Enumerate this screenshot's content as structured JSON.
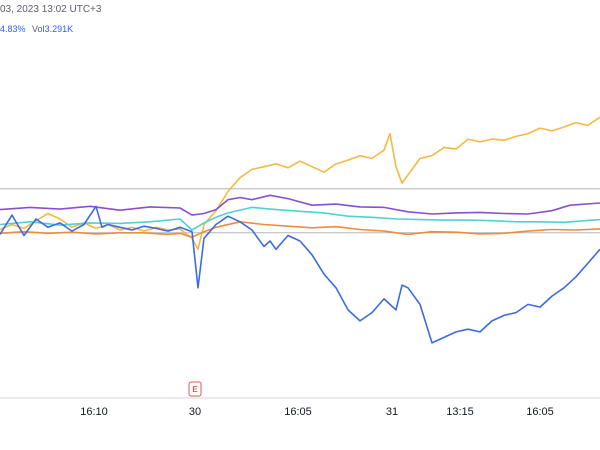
{
  "header": {
    "datetime": "03, 2023 13:02 UTC+3",
    "change_percent": "4.83%",
    "volume_label": "Vol",
    "volume_value": "3.291K"
  },
  "event_marker": {
    "label": "E",
    "color": "#e8534f"
  },
  "colors": {
    "grid": "#e0e3eb",
    "reference_line": "#b2b5be",
    "axis_separator": "#d1d4dc"
  },
  "chart_data": {
    "type": "line",
    "x_ticks": [
      "16:10",
      "30",
      "16:05",
      "31",
      "13:15",
      "16:05"
    ],
    "x_range": [
      0,
      100
    ],
    "y_range": [
      -30,
      35
    ],
    "reference_lines": [
      8,
      0
    ],
    "series": [
      {
        "color": "#f5b841",
        "points": [
          [
            0,
            0.6
          ],
          [
            2,
            1.5
          ],
          [
            4,
            0.8
          ],
          [
            6,
            2.2
          ],
          [
            8,
            3.5
          ],
          [
            10,
            2.5
          ],
          [
            12,
            1.0
          ],
          [
            14,
            1.8
          ],
          [
            16,
            0.8
          ],
          [
            18,
            1.5
          ],
          [
            20,
            0.5
          ],
          [
            22,
            1.0
          ],
          [
            24,
            0.3
          ],
          [
            26,
            1.0
          ],
          [
            28,
            0.5
          ],
          [
            30,
            0.7
          ],
          [
            32,
            -1.0
          ],
          [
            33,
            -3.0
          ],
          [
            34,
            1.5
          ],
          [
            36,
            4.0
          ],
          [
            38,
            7.5
          ],
          [
            40,
            10.0
          ],
          [
            42,
            11.5
          ],
          [
            44,
            12.0
          ],
          [
            46,
            12.5
          ],
          [
            48,
            11.8
          ],
          [
            50,
            13.0
          ],
          [
            52,
            12.0
          ],
          [
            54,
            11.0
          ],
          [
            56,
            12.5
          ],
          [
            58,
            13.2
          ],
          [
            60,
            14.0
          ],
          [
            62,
            13.5
          ],
          [
            64,
            15.0
          ],
          [
            65,
            18.0
          ],
          [
            66,
            12.0
          ],
          [
            67,
            9.0
          ],
          [
            68,
            10.5
          ],
          [
            70,
            13.5
          ],
          [
            72,
            14.0
          ],
          [
            74,
            15.5
          ],
          [
            76,
            15.2
          ],
          [
            78,
            17.0
          ],
          [
            80,
            16.5
          ],
          [
            82,
            17.0
          ],
          [
            84,
            16.8
          ],
          [
            86,
            17.5
          ],
          [
            88,
            18.0
          ],
          [
            90,
            19.0
          ],
          [
            92,
            18.5
          ],
          [
            94,
            19.2
          ],
          [
            96,
            20.0
          ],
          [
            98,
            19.5
          ],
          [
            100,
            21.0
          ]
        ]
      },
      {
        "color": "#8a4fd1",
        "points": [
          [
            0,
            4.2
          ],
          [
            5,
            4.6
          ],
          [
            10,
            4.3
          ],
          [
            15,
            4.8
          ],
          [
            20,
            4.1
          ],
          [
            25,
            4.7
          ],
          [
            30,
            4.5
          ],
          [
            32,
            3.2
          ],
          [
            34,
            3.5
          ],
          [
            36,
            4.2
          ],
          [
            38,
            6.0
          ],
          [
            40,
            6.4
          ],
          [
            42,
            6.0
          ],
          [
            45,
            6.8
          ],
          [
            48,
            6.2
          ],
          [
            52,
            5.0
          ],
          [
            56,
            5.2
          ],
          [
            60,
            4.7
          ],
          [
            64,
            4.6
          ],
          [
            68,
            3.8
          ],
          [
            72,
            3.4
          ],
          [
            76,
            3.6
          ],
          [
            80,
            3.7
          ],
          [
            84,
            3.5
          ],
          [
            88,
            3.4
          ],
          [
            92,
            4.0
          ],
          [
            95,
            5.0
          ],
          [
            100,
            5.4
          ]
        ]
      },
      {
        "color": "#4fd1d1",
        "points": [
          [
            0,
            1.5
          ],
          [
            5,
            2.0
          ],
          [
            10,
            1.4
          ],
          [
            15,
            1.8
          ],
          [
            20,
            1.7
          ],
          [
            25,
            2.0
          ],
          [
            30,
            2.5
          ],
          [
            32,
            0.5
          ],
          [
            34,
            1.8
          ],
          [
            36,
            2.8
          ],
          [
            38,
            3.6
          ],
          [
            42,
            4.6
          ],
          [
            46,
            4.2
          ],
          [
            50,
            3.9
          ],
          [
            54,
            3.6
          ],
          [
            58,
            3.0
          ],
          [
            62,
            2.8
          ],
          [
            66,
            2.5
          ],
          [
            70,
            2.4
          ],
          [
            74,
            2.3
          ],
          [
            78,
            2.3
          ],
          [
            82,
            2.2
          ],
          [
            86,
            2.0
          ],
          [
            90,
            2.0
          ],
          [
            94,
            1.9
          ],
          [
            100,
            2.4
          ]
        ]
      },
      {
        "color": "#ef8b3b",
        "points": [
          [
            0,
            -0.1
          ],
          [
            4,
            0.2
          ],
          [
            8,
            -0.1
          ],
          [
            12,
            0.1
          ],
          [
            16,
            -0.2
          ],
          [
            20,
            0.0
          ],
          [
            24,
            0.0
          ],
          [
            28,
            -0.3
          ],
          [
            30,
            -0.1
          ],
          [
            32,
            -0.8
          ],
          [
            34,
            0.2
          ],
          [
            36,
            1.0
          ],
          [
            40,
            2.0
          ],
          [
            44,
            1.5
          ],
          [
            48,
            1.2
          ],
          [
            52,
            0.9
          ],
          [
            56,
            1.1
          ],
          [
            60,
            0.6
          ],
          [
            64,
            0.3
          ],
          [
            68,
            -0.3
          ],
          [
            72,
            0.2
          ],
          [
            76,
            0.1
          ],
          [
            80,
            -0.2
          ],
          [
            84,
            -0.1
          ],
          [
            88,
            0.3
          ],
          [
            92,
            0.6
          ],
          [
            96,
            0.5
          ],
          [
            100,
            0.7
          ]
        ]
      },
      {
        "color": "#3d6ce0",
        "points": [
          [
            0,
            -0.3
          ],
          [
            2,
            3.2
          ],
          [
            4,
            -0.5
          ],
          [
            6,
            2.5
          ],
          [
            8,
            1.0
          ],
          [
            10,
            1.8
          ],
          [
            12,
            0.3
          ],
          [
            14,
            1.5
          ],
          [
            16,
            4.8
          ],
          [
            17,
            1.0
          ],
          [
            18,
            1.5
          ],
          [
            20,
            1.0
          ],
          [
            22,
            0.5
          ],
          [
            24,
            1.2
          ],
          [
            26,
            0.8
          ],
          [
            28,
            0.3
          ],
          [
            30,
            1.0
          ],
          [
            32,
            0.2
          ],
          [
            33,
            -10.0
          ],
          [
            34,
            -1.0
          ],
          [
            36,
            1.5
          ],
          [
            38,
            3.0
          ],
          [
            40,
            2.0
          ],
          [
            42,
            0.5
          ],
          [
            43,
            -1.0
          ],
          [
            44,
            -2.5
          ],
          [
            45,
            -1.5
          ],
          [
            46,
            -3.0
          ],
          [
            48,
            -0.5
          ],
          [
            50,
            -1.5
          ],
          [
            52,
            -4.0
          ],
          [
            54,
            -7.5
          ],
          [
            56,
            -10.0
          ],
          [
            58,
            -14.0
          ],
          [
            60,
            -16.0
          ],
          [
            62,
            -14.5
          ],
          [
            64,
            -12.0
          ],
          [
            66,
            -14.0
          ],
          [
            67,
            -9.5
          ],
          [
            68,
            -10.0
          ],
          [
            70,
            -13.0
          ],
          [
            72,
            -20.0
          ],
          [
            74,
            -19.0
          ],
          [
            76,
            -18.0
          ],
          [
            78,
            -17.5
          ],
          [
            80,
            -18.0
          ],
          [
            82,
            -16.0
          ],
          [
            84,
            -15.0
          ],
          [
            86,
            -14.5
          ],
          [
            88,
            -13.0
          ],
          [
            90,
            -13.5
          ],
          [
            92,
            -11.5
          ],
          [
            94,
            -10.0
          ],
          [
            96,
            -8.0
          ],
          [
            98,
            -5.5
          ],
          [
            100,
            -3.0
          ]
        ]
      }
    ]
  }
}
